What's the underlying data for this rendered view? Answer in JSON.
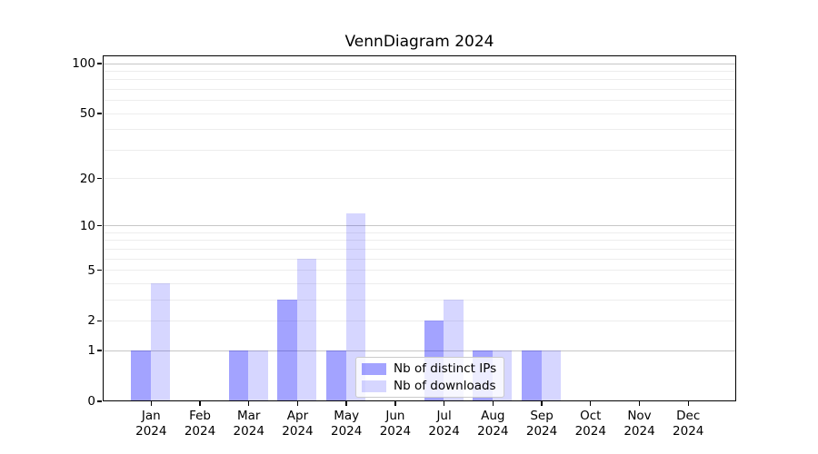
{
  "figure": {
    "title": "VennDiagram 2024",
    "background": "#ffffff"
  },
  "chart_data": {
    "type": "bar",
    "title": "VennDiagram 2024",
    "xlabel": "",
    "ylabel": "",
    "x_months": [
      "Jan",
      "Feb",
      "Mar",
      "Apr",
      "May",
      "Jun",
      "Jul",
      "Aug",
      "Sep",
      "Oct",
      "Nov",
      "Dec"
    ],
    "x_year": "2024",
    "series": [
      {
        "name": "Nb of distinct IPs",
        "color": "rgba(0,0,255,0.36)",
        "values": [
          1,
          0,
          1,
          3,
          1,
          0,
          2,
          1,
          1,
          0,
          0,
          0
        ]
      },
      {
        "name": "Nb of downloads",
        "color": "rgba(0,0,255,0.16)",
        "values": [
          4,
          0,
          1,
          6,
          12,
          0,
          3,
          1,
          1,
          0,
          0,
          0
        ]
      }
    ],
    "yscale": "log1p",
    "ylim": [
      0,
      100
    ],
    "ytick_labels": [
      0,
      1,
      2,
      5,
      10,
      20,
      50,
      100
    ],
    "major_gridlines": [
      1,
      10,
      100
    ],
    "minor_gridlines": [
      2,
      3,
      4,
      5,
      6,
      7,
      8,
      9,
      20,
      30,
      40,
      50,
      60,
      70,
      80,
      90
    ],
    "grid_major_color": "#c6c6c6",
    "grid_minor_color": "#ededed",
    "legend_position": "lower center",
    "grid": "on"
  }
}
